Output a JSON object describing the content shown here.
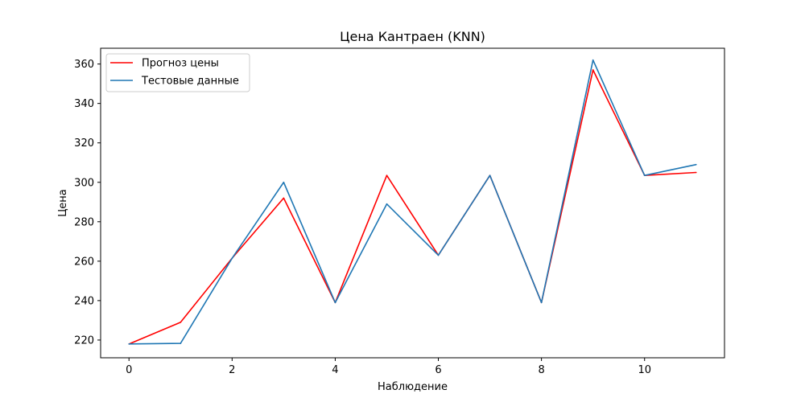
{
  "chart_data": {
    "type": "line",
    "title": "Цена Кантраен  (KNN)",
    "xlabel": "Наблюдение",
    "ylabel": "Цена",
    "xlim": [
      -0.55,
      11.55
    ],
    "ylim": [
      211,
      368
    ],
    "xticks": [
      0,
      2,
      4,
      6,
      8,
      10
    ],
    "yticks": [
      220,
      240,
      260,
      280,
      300,
      320,
      340,
      360
    ],
    "grid": false,
    "legend_position": "top-left",
    "x": [
      0,
      1,
      2,
      3,
      4,
      5,
      6,
      7,
      8,
      9,
      10,
      11
    ],
    "series": [
      {
        "name": "Прогноз цены",
        "color": "#ff0000",
        "values": [
          218,
          229,
          261.5,
          292,
          239,
          303.5,
          263,
          303.5,
          239,
          357,
          303.5,
          305
        ]
      },
      {
        "name": "Тестовые данные",
        "color": "#1f77b4",
        "values": [
          218,
          218.3,
          261.5,
          300,
          239,
          289,
          263,
          303.5,
          239,
          362,
          303.5,
          309
        ]
      }
    ]
  }
}
